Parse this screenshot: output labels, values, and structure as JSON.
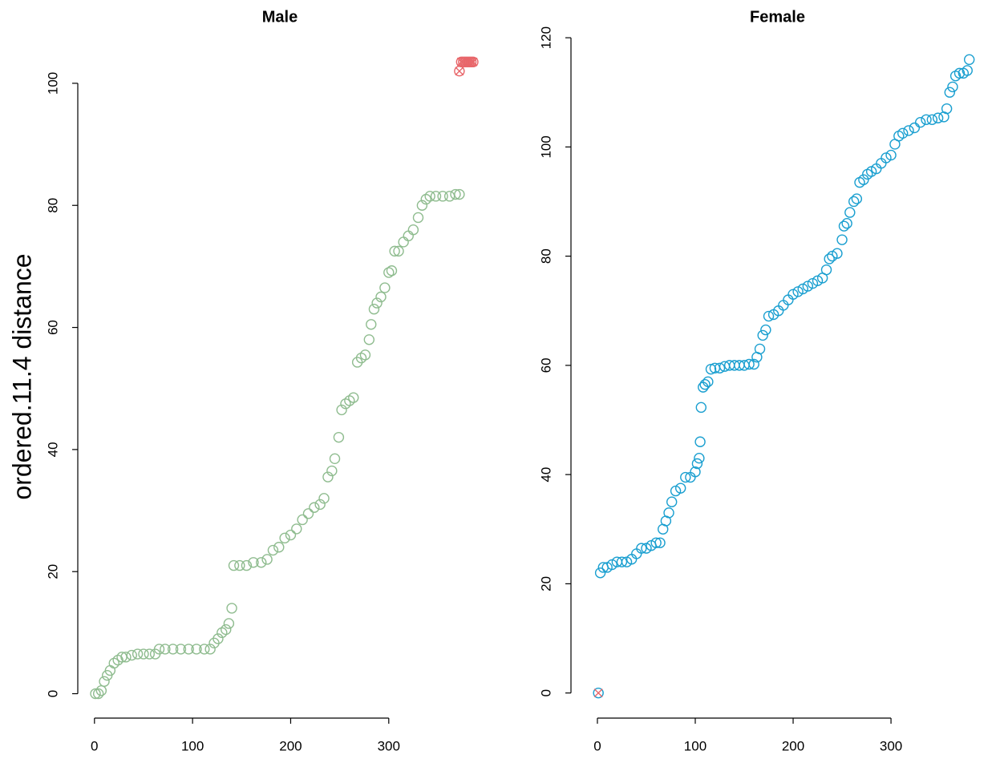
{
  "y_label": "ordered.11.4 distance",
  "chart_data": [
    {
      "type": "scatter",
      "title": "Male",
      "xlim": [
        -17,
        395
      ],
      "ylim": [
        -4,
        108
      ],
      "xticks": [
        0,
        100,
        200,
        300
      ],
      "yticks": [
        0,
        20,
        40,
        60,
        80,
        100
      ],
      "series": [
        {
          "color": "#8fbc8f",
          "marker": "circle",
          "x": [
            1,
            4,
            7,
            10,
            13,
            16,
            20,
            24,
            28,
            32,
            38,
            44,
            50,
            56,
            62,
            66,
            72,
            80,
            88,
            96,
            104,
            112,
            118,
            122,
            126,
            130,
            134,
            137,
            140,
            142,
            148,
            155,
            162,
            170,
            176,
            182,
            188,
            194,
            200,
            206,
            212,
            218,
            224,
            230,
            234,
            238,
            242,
            245,
            249,
            252,
            256,
            260,
            264,
            268,
            272,
            276,
            280,
            282,
            285,
            288,
            292,
            296,
            300,
            303,
            306,
            310,
            315,
            320,
            325,
            330,
            334,
            338,
            342,
            348,
            355,
            362,
            368,
            372
          ],
          "values": [
            0,
            0,
            0.5,
            2,
            3,
            3.8,
            5,
            5.5,
            6,
            6,
            6.3,
            6.5,
            6.5,
            6.5,
            6.5,
            7.3,
            7.3,
            7.3,
            7.3,
            7.3,
            7.3,
            7.3,
            7.3,
            8.3,
            9,
            10,
            10.5,
            11.5,
            14,
            21,
            21,
            21,
            21.5,
            21.5,
            22,
            23.5,
            24,
            25.5,
            26,
            27,
            28.5,
            29.5,
            30.5,
            31,
            32,
            35.5,
            36.5,
            38.5,
            42,
            46.5,
            47.5,
            48,
            48.5,
            54.3,
            55,
            55.5,
            58,
            60.5,
            63,
            64,
            65,
            66.5,
            69,
            69.3,
            72.5,
            72.5,
            74,
            75,
            76,
            78,
            80,
            81,
            81.5,
            81.5,
            81.5,
            81.5,
            81.8,
            81.8
          ]
        },
        {
          "color": "#e8666a",
          "marker": "circle-x",
          "x": [
            372,
            374,
            376,
            378,
            380,
            382,
            384,
            386
          ],
          "values": [
            102,
            103.5,
            103.5,
            103.5,
            103.5,
            103.5,
            103.5,
            103.5
          ]
        }
      ]
    },
    {
      "type": "scatter",
      "title": "Female",
      "xlim": [
        -27,
        395
      ],
      "ylim": [
        -4.6,
        120.6
      ],
      "xticks": [
        0,
        100,
        200,
        300
      ],
      "yticks": [
        0,
        20,
        40,
        60,
        80,
        100,
        120
      ],
      "series": [
        {
          "color": "#1a9fd0",
          "marker": "circle",
          "x": [
            1,
            3,
            6,
            10,
            15,
            20,
            25,
            30,
            35,
            40,
            45,
            50,
            55,
            60,
            64,
            67,
            70,
            73,
            76,
            80,
            85,
            90,
            95,
            100,
            102,
            104,
            105,
            106,
            108,
            110,
            113,
            116,
            120,
            125,
            130,
            135,
            140,
            145,
            150,
            155,
            160,
            163,
            166,
            169,
            172,
            175,
            180,
            185,
            190,
            195,
            200,
            205,
            210,
            215,
            220,
            225,
            230,
            234,
            237,
            240,
            245,
            250,
            252,
            255,
            258,
            262,
            265,
            268,
            272,
            276,
            280,
            285,
            290,
            295,
            300,
            304,
            308,
            312,
            318,
            324,
            330,
            336,
            342,
            348,
            354,
            357,
            360,
            363,
            366,
            370,
            374,
            378,
            380
          ],
          "values": [
            0,
            22,
            23,
            23,
            23.5,
            24,
            24,
            24,
            24.5,
            25.5,
            26.5,
            26.5,
            27,
            27.5,
            27.5,
            30,
            31.5,
            33,
            35,
            37,
            37.5,
            39.5,
            39.5,
            40.5,
            42,
            43,
            46,
            52.3,
            56,
            56.5,
            57,
            59.3,
            59.5,
            59.5,
            59.8,
            60,
            60,
            60,
            60,
            60.2,
            60.2,
            61.5,
            63,
            65.5,
            66.5,
            69,
            69.3,
            70,
            71,
            72,
            73,
            73.5,
            74,
            74.5,
            75,
            75.5,
            76,
            77.5,
            79.5,
            80,
            80.5,
            83,
            85.5,
            86,
            88,
            90,
            90.5,
            93.5,
            94,
            95,
            95.5,
            96,
            97,
            98,
            98.5,
            100.5,
            102,
            102.5,
            103,
            103.5,
            104.5,
            105,
            105,
            105.3,
            105.5,
            107,
            110,
            111,
            113,
            113.5,
            113.5,
            114,
            116
          ]
        },
        {
          "color": "#e8666a",
          "marker": "x",
          "x": [
            1
          ],
          "values": [
            0
          ]
        }
      ]
    }
  ]
}
